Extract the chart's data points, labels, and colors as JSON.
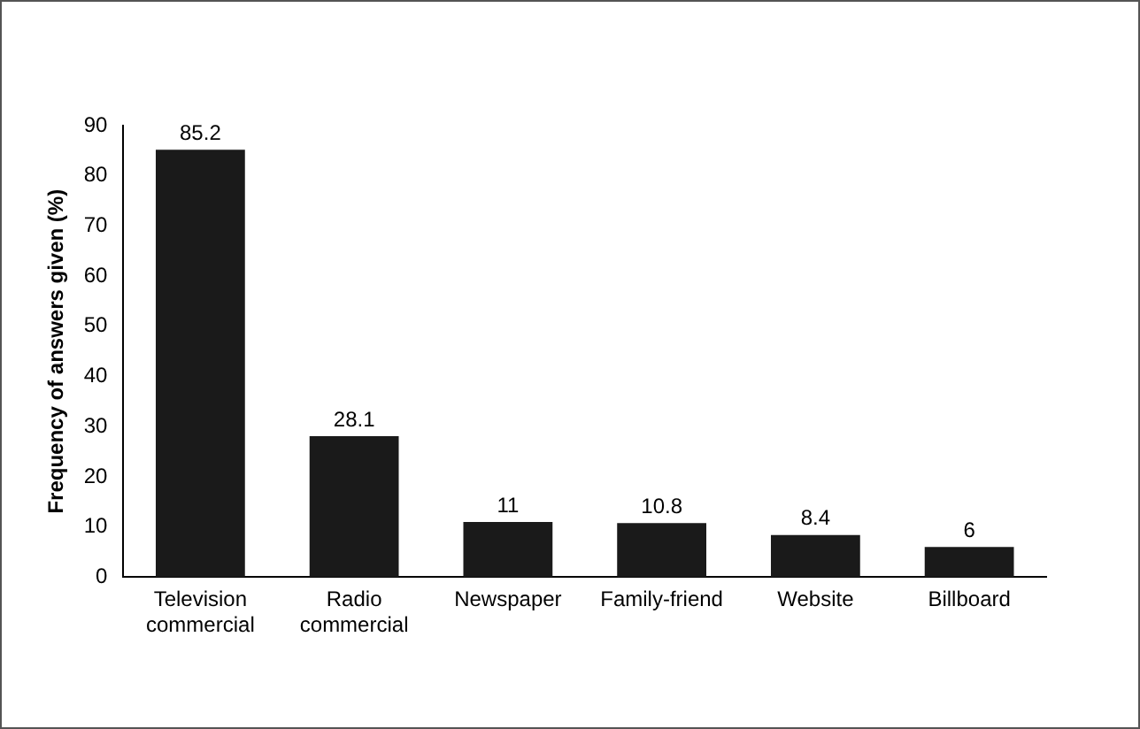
{
  "chart_data": {
    "type": "bar",
    "ylabel": "Frequency of answers given (%)",
    "categories": [
      "Television commercial",
      "Radio commercial",
      "Newspaper",
      "Family-friend",
      "Website",
      "Billboard"
    ],
    "values": [
      85.2,
      28.1,
      11,
      10.8,
      8.4,
      6
    ],
    "color": "#1a1a1a",
    "ylim": [
      0,
      90
    ],
    "yticks": [
      0,
      10,
      20,
      30,
      40,
      50,
      60,
      70,
      80,
      90
    ],
    "grid": false,
    "data_labels": true,
    "legend": false
  }
}
